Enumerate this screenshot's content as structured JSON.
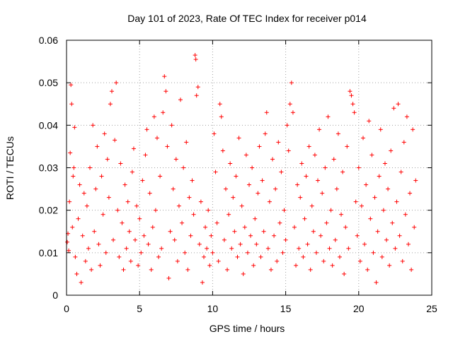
{
  "chart_data": {
    "type": "scatter",
    "title": "Day 101 of 2023, Rate Of TEC Index for receiver p014",
    "xlabel": "GPS time / hours",
    "ylabel": "ROTI / TECUs",
    "xlim": [
      0,
      25
    ],
    "ylim": [
      0,
      0.06
    ],
    "xticks": [
      0,
      5,
      10,
      15,
      20,
      25
    ],
    "yticks": [
      0,
      0.01,
      0.02,
      0.03,
      0.04,
      0.05,
      0.06
    ],
    "xtick_labels": [
      "0",
      "5",
      "10",
      "15",
      "20",
      "25"
    ],
    "ytick_labels": [
      "0",
      "0.01",
      "0.02",
      "0.03",
      "0.04",
      "0.05",
      "0.06"
    ],
    "grid": true,
    "marker": "+",
    "color": "#ff0000",
    "series": [
      {
        "points": [
          [
            0.05,
            0.0125
          ],
          [
            0.1,
            0.0145
          ],
          [
            0.15,
            0.0105
          ],
          [
            0.2,
            0.022
          ],
          [
            0.25,
            0.0335
          ],
          [
            0.3,
            0.0495
          ],
          [
            0.35,
            0.045
          ],
          [
            0.4,
            0.016
          ],
          [
            0.45,
            0.028
          ],
          [
            0.5,
            0.03
          ],
          [
            0.55,
            0.0395
          ],
          [
            0.6,
            0.009
          ],
          [
            0.7,
            0.005
          ],
          [
            0.8,
            0.018
          ],
          [
            0.9,
            0.026
          ],
          [
            1.0,
            0.003
          ],
          [
            1.1,
            0.014
          ],
          [
            1.2,
            0.024
          ],
          [
            1.3,
            0.008
          ],
          [
            1.4,
            0.021
          ],
          [
            1.5,
            0.011
          ],
          [
            1.6,
            0.03
          ],
          [
            1.7,
            0.006
          ],
          [
            1.8,
            0.04
          ],
          [
            1.9,
            0.015
          ],
          [
            2.0,
            0.025
          ],
          [
            2.1,
            0.035
          ],
          [
            2.2,
            0.012
          ],
          [
            2.3,
            0.007
          ],
          [
            2.4,
            0.028
          ],
          [
            2.5,
            0.019
          ],
          [
            2.6,
            0.038
          ],
          [
            2.7,
            0.01
          ],
          [
            2.8,
            0.032
          ],
          [
            2.9,
            0.023
          ],
          [
            3.0,
            0.045
          ],
          [
            3.1,
            0.048
          ],
          [
            3.2,
            0.013
          ],
          [
            3.3,
            0.0365
          ],
          [
            3.4,
            0.05
          ],
          [
            3.5,
            0.02
          ],
          [
            3.6,
            0.009
          ],
          [
            3.7,
            0.031
          ],
          [
            3.8,
            0.017
          ],
          [
            3.9,
            0.006
          ],
          [
            4.0,
            0.026
          ],
          [
            4.1,
            0.011
          ],
          [
            4.2,
            0.022
          ],
          [
            4.3,
            0.015
          ],
          [
            4.4,
            0.008
          ],
          [
            4.5,
            0.029
          ],
          [
            4.6,
            0.0345
          ],
          [
            4.7,
            0.013
          ],
          [
            4.8,
            0.021
          ],
          [
            4.9,
            0.007
          ],
          [
            5.0,
            0.018
          ],
          [
            5.1,
            0.01
          ],
          [
            5.2,
            0.027
          ],
          [
            5.3,
            0.014
          ],
          [
            5.4,
            0.033
          ],
          [
            5.5,
            0.039
          ],
          [
            5.6,
            0.012
          ],
          [
            5.7,
            0.024
          ],
          [
            5.8,
            0.006
          ],
          [
            5.9,
            0.016
          ],
          [
            6.0,
            0.042
          ],
          [
            6.1,
            0.02
          ],
          [
            6.2,
            0.037
          ],
          [
            6.3,
            0.009
          ],
          [
            6.4,
            0.028
          ],
          [
            6.5,
            0.011
          ],
          [
            6.6,
            0.043
          ],
          [
            6.7,
            0.0515
          ],
          [
            6.8,
            0.048
          ],
          [
            6.9,
            0.035
          ],
          [
            7.0,
            0.004
          ],
          [
            7.1,
            0.015
          ],
          [
            7.2,
            0.04
          ],
          [
            7.3,
            0.025
          ],
          [
            7.4,
            0.013
          ],
          [
            7.5,
            0.032
          ],
          [
            7.6,
            0.008
          ],
          [
            7.7,
            0.021
          ],
          [
            7.8,
            0.046
          ],
          [
            7.9,
            0.017
          ],
          [
            8.0,
            0.03
          ],
          [
            8.1,
            0.01
          ],
          [
            8.2,
            0.036
          ],
          [
            8.3,
            0.006
          ],
          [
            8.4,
            0.023
          ],
          [
            8.5,
            0.014
          ],
          [
            8.6,
            0.027
          ],
          [
            8.7,
            0.019
          ],
          [
            8.8,
            0.0565
          ],
          [
            8.85,
            0.0555
          ],
          [
            8.9,
            0.047
          ],
          [
            9.0,
            0.049
          ],
          [
            9.1,
            0.012
          ],
          [
            9.2,
            0.022
          ],
          [
            9.3,
            0.003
          ],
          [
            9.4,
            0.009
          ],
          [
            9.5,
            0.016
          ],
          [
            9.6,
            0.011
          ],
          [
            9.7,
            0.02
          ],
          [
            9.8,
            0.007
          ],
          [
            9.9,
            0.014
          ],
          [
            10.0,
            0.01
          ],
          [
            10.1,
            0.038
          ],
          [
            10.2,
            0.029
          ],
          [
            10.3,
            0.017
          ],
          [
            10.4,
            0.008
          ],
          [
            10.5,
            0.045
          ],
          [
            10.6,
            0.042
          ],
          [
            10.7,
            0.034
          ],
          [
            10.8,
            0.013
          ],
          [
            10.9,
            0.025
          ],
          [
            11.0,
            0.006
          ],
          [
            11.1,
            0.019
          ],
          [
            11.2,
            0.031
          ],
          [
            11.3,
            0.011
          ],
          [
            11.4,
            0.023
          ],
          [
            11.5,
            0.015
          ],
          [
            11.6,
            0.028
          ],
          [
            11.7,
            0.009
          ],
          [
            11.8,
            0.037
          ],
          [
            11.9,
            0.012
          ],
          [
            12.0,
            0.021
          ],
          [
            12.1,
            0.005
          ],
          [
            12.2,
            0.016
          ],
          [
            12.3,
            0.033
          ],
          [
            12.4,
            0.01
          ],
          [
            12.5,
            0.026
          ],
          [
            12.6,
            0.014
          ],
          [
            12.7,
            0.03
          ],
          [
            12.8,
            0.007
          ],
          [
            12.9,
            0.018
          ],
          [
            13.0,
            0.012
          ],
          [
            13.1,
            0.024
          ],
          [
            13.2,
            0.035
          ],
          [
            13.3,
            0.009
          ],
          [
            13.4,
            0.027
          ],
          [
            13.5,
            0.015
          ],
          [
            13.6,
            0.038
          ],
          [
            13.7,
            0.043
          ],
          [
            13.8,
            0.011
          ],
          [
            13.9,
            0.022
          ],
          [
            14.0,
            0.006
          ],
          [
            14.1,
            0.032
          ],
          [
            14.2,
            0.014
          ],
          [
            14.3,
            0.025
          ],
          [
            14.4,
            0.008
          ],
          [
            14.5,
            0.036
          ],
          [
            14.6,
            0.017
          ],
          [
            14.7,
            0.029
          ],
          [
            14.8,
            0.01
          ],
          [
            14.9,
            0.02
          ],
          [
            15.0,
            0.013
          ],
          [
            15.1,
            0.04
          ],
          [
            15.2,
            0.034
          ],
          [
            15.3,
            0.045
          ],
          [
            15.4,
            0.05
          ],
          [
            15.5,
            0.043
          ],
          [
            15.6,
            0.016
          ],
          [
            15.7,
            0.007
          ],
          [
            15.8,
            0.026
          ],
          [
            15.9,
            0.011
          ],
          [
            16.0,
            0.023
          ],
          [
            16.1,
            0.031
          ],
          [
            16.2,
            0.009
          ],
          [
            16.3,
            0.018
          ],
          [
            16.4,
            0.028
          ],
          [
            16.5,
            0.012
          ],
          [
            16.6,
            0.035
          ],
          [
            16.7,
            0.006
          ],
          [
            16.8,
            0.021
          ],
          [
            16.9,
            0.015
          ],
          [
            17.0,
            0.033
          ],
          [
            17.1,
            0.01
          ],
          [
            17.2,
            0.027
          ],
          [
            17.3,
            0.039
          ],
          [
            17.4,
            0.014
          ],
          [
            17.5,
            0.024
          ],
          [
            17.6,
            0.008
          ],
          [
            17.7,
            0.03
          ],
          [
            17.8,
            0.017
          ],
          [
            17.9,
            0.042
          ],
          [
            18.0,
            0.011
          ],
          [
            18.1,
            0.02
          ],
          [
            18.2,
            0.007
          ],
          [
            18.3,
            0.032
          ],
          [
            18.4,
            0.013
          ],
          [
            18.5,
            0.025
          ],
          [
            18.6,
            0.038
          ],
          [
            18.7,
            0.009
          ],
          [
            18.8,
            0.019
          ],
          [
            18.9,
            0.029
          ],
          [
            19.0,
            0.005
          ],
          [
            19.1,
            0.016
          ],
          [
            19.2,
            0.035
          ],
          [
            19.3,
            0.011
          ],
          [
            19.4,
            0.048
          ],
          [
            19.5,
            0.047
          ],
          [
            19.6,
            0.045
          ],
          [
            19.7,
            0.043
          ],
          [
            19.8,
            0.022
          ],
          [
            19.9,
            0.014
          ],
          [
            20.0,
            0.03
          ],
          [
            20.1,
            0.008
          ],
          [
            20.2,
            0.021
          ],
          [
            20.3,
            0.037
          ],
          [
            20.4,
            0.012
          ],
          [
            20.5,
            0.026
          ],
          [
            20.6,
            0.006
          ],
          [
            20.7,
            0.041
          ],
          [
            20.8,
            0.018
          ],
          [
            20.9,
            0.033
          ],
          [
            21.0,
            0.01
          ],
          [
            21.1,
            0.023
          ],
          [
            21.2,
            0.003
          ],
          [
            21.3,
            0.015
          ],
          [
            21.4,
            0.028
          ],
          [
            21.5,
            0.039
          ],
          [
            21.6,
            0.009
          ],
          [
            21.7,
            0.02
          ],
          [
            21.8,
            0.031
          ],
          [
            21.9,
            0.013
          ],
          [
            22.0,
            0.025
          ],
          [
            22.1,
            0.007
          ],
          [
            22.2,
            0.034
          ],
          [
            22.3,
            0.017
          ],
          [
            22.4,
            0.044
          ],
          [
            22.5,
            0.011
          ],
          [
            22.6,
            0.022
          ],
          [
            22.7,
            0.045
          ],
          [
            22.8,
            0.014
          ],
          [
            22.9,
            0.029
          ],
          [
            23.0,
            0.008
          ],
          [
            23.1,
            0.036
          ],
          [
            23.2,
            0.019
          ],
          [
            23.3,
            0.042
          ],
          [
            23.4,
            0.012
          ],
          [
            23.5,
            0.024
          ],
          [
            23.6,
            0.006
          ],
          [
            23.7,
            0.039
          ],
          [
            23.8,
            0.016
          ],
          [
            23.9,
            0.027
          ]
        ]
      }
    ]
  }
}
